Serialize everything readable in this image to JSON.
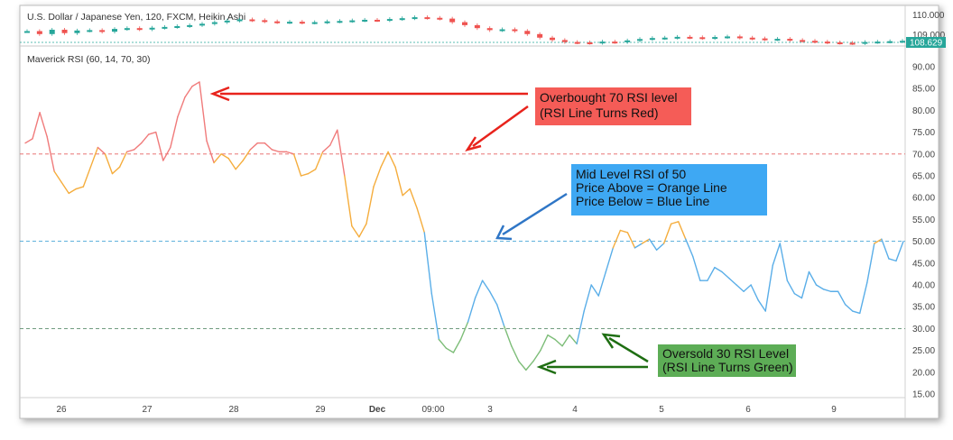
{
  "price_panel": {
    "title": "U.S. Dollar / Japanese Yen, 120, FXCM, Heikin Ashi",
    "y_ticks": [
      "110.000",
      "109.000"
    ],
    "last_price": "108.629",
    "candles": [
      0.25,
      0.1,
      0.32,
      0.15,
      0.28,
      0.3,
      0.22,
      0.36,
      0.4,
      0.34,
      0.42,
      0.46,
      0.5,
      0.55,
      0.62,
      0.7,
      0.78,
      0.84,
      0.8,
      0.74,
      0.7,
      0.72,
      0.68,
      0.7,
      0.74,
      0.76,
      0.79,
      0.82,
      0.8,
      0.86,
      0.9,
      0.95,
      0.92,
      0.88,
      0.7,
      0.55,
      0.4,
      0.3,
      0.34,
      0.26,
      0.1,
      -0.08,
      -0.2,
      -0.3,
      -0.32,
      -0.34,
      -0.28,
      -0.3,
      -0.22,
      -0.15,
      -0.1,
      -0.08,
      -0.04,
      -0.06,
      -0.1,
      -0.05,
      -0.02,
      -0.08,
      -0.12,
      -0.16,
      -0.14,
      -0.2,
      -0.24,
      -0.28,
      -0.32,
      -0.34,
      -0.36,
      -0.3,
      -0.28,
      -0.26,
      -0.24
    ]
  },
  "indicator": {
    "title": "Maverick RSI (60, 14, 70, 30)"
  },
  "chart_data": {
    "type": "line",
    "ylim": [
      15,
      90
    ],
    "y_ticks": [
      90,
      85,
      80,
      75,
      70,
      65,
      60,
      55,
      50,
      45,
      40,
      35,
      30,
      25,
      20,
      15
    ],
    "x_ticks": [
      "26",
      "27",
      "28",
      "29",
      "Dec",
      "09:00",
      "3",
      "4",
      "5",
      "6",
      "9"
    ],
    "levels": {
      "overbought": 70,
      "mid": 50,
      "oversold": 30
    },
    "colors": {
      "overbought": "#f07b7b",
      "above_mid": "#f5ad3d",
      "below_mid": "#5aaee8",
      "oversold": "#7dbd78"
    },
    "rsi": [
      72.5,
      73.5,
      79.5,
      74,
      66,
      63.5,
      61,
      62,
      62.5,
      67,
      71.5,
      70,
      65.5,
      67,
      70.5,
      71,
      72.5,
      74.5,
      75,
      68.5,
      71.5,
      78.5,
      83,
      85.5,
      86.5,
      73,
      68,
      70,
      69,
      66.5,
      68.5,
      71,
      72.5,
      72.5,
      71,
      70.5,
      70.5,
      70,
      65,
      65.5,
      66.5,
      70.5,
      72,
      75.5,
      65,
      53.5,
      51,
      54,
      62.5,
      67,
      70.5,
      67,
      60.5,
      62,
      57.5,
      52,
      38,
      27.5,
      25.5,
      24.5,
      27.5,
      31.5,
      37,
      41,
      38.5,
      35.5,
      30.5,
      26,
      22.5,
      20.5,
      22.5,
      25,
      28.5,
      27.5,
      26,
      28.5,
      26.5,
      34,
      40,
      37.5,
      43,
      48.5,
      52.5,
      52,
      48.5,
      49.5,
      50.5,
      48,
      49.5,
      54,
      54.5,
      50.5,
      46.5,
      41,
      41,
      44,
      43,
      41.5,
      40,
      38.5,
      40,
      36.5,
      34,
      44.5,
      49.5,
      41,
      38,
      37,
      43,
      40,
      39,
      38.5,
      38.5,
      35.5,
      34,
      33.5,
      40.5,
      49.5,
      50.5,
      46,
      45.5,
      50
    ]
  },
  "annotations": {
    "overbought": {
      "line1": "Overbought 70 RSI level",
      "line2": "(RSI Line Turns Red)",
      "color": "#f55c57"
    },
    "midlevel": {
      "line1": "Mid Level RSI of 50",
      "line2": "Price Above = Orange Line",
      "line3": "Price Below = Blue Line",
      "color": "#3ea8f3"
    },
    "oversold": {
      "line1": "Oversold 30 RSI Level",
      "line2": "(RSI Line Turns Green)",
      "color": "#5dad56"
    }
  }
}
